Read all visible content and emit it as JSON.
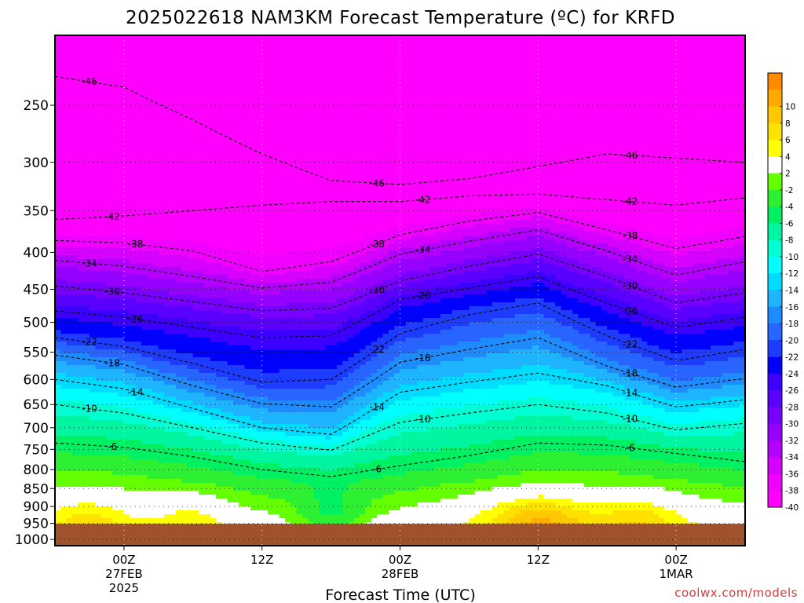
{
  "chart_data": {
    "type": "heatmap",
    "title": "2025022618 NAM3KM Forecast Temperature (ºC) for KRFD",
    "xlabel": "Forecast Time (UTC)",
    "ylabel": "",
    "y_scale": "log-pressure",
    "y_ticks": [
      250,
      300,
      350,
      400,
      450,
      500,
      550,
      600,
      650,
      700,
      750,
      800,
      850,
      900,
      950,
      1000
    ],
    "y_range": [
      200,
      1020
    ],
    "x_ticks": [
      {
        "label": "00Z",
        "date": "27FEB",
        "year": "2025",
        "hour": 6
      },
      {
        "label": "12Z",
        "date": "",
        "year": "",
        "hour": 18
      },
      {
        "label": "00Z",
        "date": "28FEB",
        "year": "",
        "hour": 30
      },
      {
        "label": "12Z",
        "date": "",
        "year": "",
        "hour": 42
      },
      {
        "label": "00Z",
        "date": "1MAR",
        "year": "",
        "hour": 54
      }
    ],
    "x_range_hours": [
      0,
      60
    ],
    "colorbar": {
      "levels": [
        {
          "label": "-40",
          "color": "#ff00ff"
        },
        {
          "label": "-38",
          "color": "#f000ff"
        },
        {
          "label": "-36",
          "color": "#d500ff"
        },
        {
          "label": "-34",
          "color": "#b400ff"
        },
        {
          "label": "-32",
          "color": "#9600ff"
        },
        {
          "label": "-30",
          "color": "#7800ff"
        },
        {
          "label": "-28",
          "color": "#5a00ff"
        },
        {
          "label": "-26",
          "color": "#3c00ff"
        },
        {
          "label": "-24",
          "color": "#0000ff"
        },
        {
          "label": "-22",
          "color": "#1e3cff"
        },
        {
          "label": "-20",
          "color": "#2864ff"
        },
        {
          "label": "-18",
          "color": "#1e8cff"
        },
        {
          "label": "-16",
          "color": "#1eb4ff"
        },
        {
          "label": "-14",
          "color": "#00dcff"
        },
        {
          "label": "-12",
          "color": "#00ffff"
        },
        {
          "label": "-10",
          "color": "#00ffd2"
        },
        {
          "label": "-8",
          "color": "#00f5a0"
        },
        {
          "label": "-6",
          "color": "#00f064"
        },
        {
          "label": "-4",
          "color": "#2df032"
        },
        {
          "label": "-2",
          "color": "#64ff00"
        },
        {
          "label": "2",
          "color": "#ffffff"
        },
        {
          "label": "4",
          "color": "#ffff00"
        },
        {
          "label": "6",
          "color": "#ffe100"
        },
        {
          "label": "8",
          "color": "#ffc800"
        },
        {
          "label": "10",
          "color": "#ffaa00"
        },
        {
          "label": "",
          "color": "#ff8c00"
        }
      ]
    },
    "isotherms": [
      {
        "value": -46,
        "points": [
          [
            0,
            228
          ],
          [
            6,
            236
          ],
          [
            12,
            262
          ],
          [
            18,
            292
          ],
          [
            24,
            318
          ],
          [
            30,
            322
          ],
          [
            36,
            316
          ],
          [
            42,
            304
          ],
          [
            48,
            292
          ],
          [
            54,
            296
          ],
          [
            60,
            300
          ]
        ]
      },
      {
        "value": -42,
        "points": [
          [
            0,
            360
          ],
          [
            6,
            356
          ],
          [
            12,
            350
          ],
          [
            18,
            344
          ],
          [
            24,
            340
          ],
          [
            30,
            340
          ],
          [
            36,
            334
          ],
          [
            42,
            332
          ],
          [
            48,
            338
          ],
          [
            54,
            344
          ],
          [
            60,
            336
          ]
        ]
      },
      {
        "value": -38,
        "points": [
          [
            0,
            385
          ],
          [
            6,
            388
          ],
          [
            12,
            398
          ],
          [
            18,
            425
          ],
          [
            24,
            412
          ],
          [
            30,
            378
          ],
          [
            36,
            362
          ],
          [
            42,
            352
          ],
          [
            48,
            372
          ],
          [
            54,
            395
          ],
          [
            60,
            380
          ]
        ]
      },
      {
        "value": -34,
        "points": [
          [
            0,
            410
          ],
          [
            6,
            418
          ],
          [
            12,
            432
          ],
          [
            18,
            448
          ],
          [
            24,
            440
          ],
          [
            30,
            402
          ],
          [
            36,
            386
          ],
          [
            42,
            372
          ],
          [
            48,
            398
          ],
          [
            54,
            430
          ],
          [
            60,
            412
          ]
        ]
      },
      {
        "value": -30,
        "points": [
          [
            0,
            445
          ],
          [
            6,
            455
          ],
          [
            12,
            468
          ],
          [
            18,
            482
          ],
          [
            24,
            478
          ],
          [
            30,
            438
          ],
          [
            36,
            418
          ],
          [
            42,
            402
          ],
          [
            48,
            432
          ],
          [
            54,
            470
          ],
          [
            60,
            455
          ]
        ]
      },
      {
        "value": -26,
        "points": [
          [
            0,
            482
          ],
          [
            6,
            492
          ],
          [
            12,
            508
          ],
          [
            18,
            525
          ],
          [
            24,
            522
          ],
          [
            30,
            465
          ],
          [
            36,
            448
          ],
          [
            42,
            432
          ],
          [
            48,
            470
          ],
          [
            54,
            508
          ],
          [
            60,
            492
          ]
        ]
      },
      {
        "value": -22,
        "points": [
          [
            0,
            525
          ],
          [
            6,
            540
          ],
          [
            12,
            570
          ],
          [
            18,
            605
          ],
          [
            24,
            600
          ],
          [
            30,
            518
          ],
          [
            36,
            488
          ],
          [
            42,
            470
          ],
          [
            48,
            522
          ],
          [
            54,
            565
          ],
          [
            60,
            545
          ]
        ]
      },
      {
        "value": -18,
        "points": [
          [
            0,
            555
          ],
          [
            6,
            572
          ],
          [
            12,
            612
          ],
          [
            18,
            648
          ],
          [
            24,
            655
          ],
          [
            30,
            568
          ],
          [
            36,
            545
          ],
          [
            42,
            525
          ],
          [
            48,
            575
          ],
          [
            54,
            615
          ],
          [
            60,
            598
          ]
        ]
      },
      {
        "value": -14,
        "points": [
          [
            0,
            600
          ],
          [
            6,
            618
          ],
          [
            12,
            658
          ],
          [
            18,
            700
          ],
          [
            24,
            715
          ],
          [
            30,
            625
          ],
          [
            36,
            605
          ],
          [
            42,
            588
          ],
          [
            48,
            612
          ],
          [
            54,
            655
          ],
          [
            60,
            640
          ]
        ]
      },
      {
        "value": -10,
        "points": [
          [
            0,
            650
          ],
          [
            6,
            668
          ],
          [
            12,
            700
          ],
          [
            18,
            735
          ],
          [
            24,
            752
          ],
          [
            30,
            688
          ],
          [
            36,
            668
          ],
          [
            42,
            650
          ],
          [
            48,
            668
          ],
          [
            54,
            705
          ],
          [
            60,
            690
          ]
        ]
      },
      {
        "value": -6,
        "points": [
          [
            0,
            735
          ],
          [
            6,
            745
          ],
          [
            12,
            768
          ],
          [
            18,
            800
          ],
          [
            24,
            818
          ],
          [
            30,
            790
          ],
          [
            36,
            765
          ],
          [
            42,
            735
          ],
          [
            48,
            740
          ],
          [
            54,
            760
          ],
          [
            60,
            780
          ]
        ]
      }
    ]
  },
  "footer": {
    "credit": "coolwx.com/models"
  }
}
